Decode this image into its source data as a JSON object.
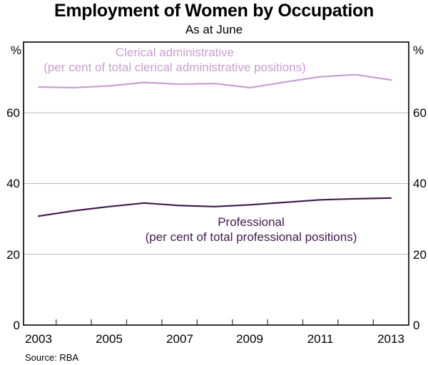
{
  "title": "Employment of Women by Occupation",
  "subtitle": "As at June",
  "source": "Source: RBA",
  "axis": {
    "unit_left": "%",
    "unit_right": "%",
    "yticks_left": [
      "60",
      "40",
      "20",
      "0"
    ],
    "yticks_right": [
      "60",
      "40",
      "20",
      "0"
    ],
    "xticks": [
      "2003",
      "2005",
      "2007",
      "2009",
      "2011",
      "2013"
    ]
  },
  "colors": {
    "grid": "#b8b8b8",
    "axis_border": "#000000",
    "tick": "#444444",
    "text": "#000000"
  },
  "chart_data": {
    "type": "line",
    "title": "Employment of Women by Occupation",
    "subtitle": "As at June",
    "x": [
      2003,
      2004,
      2005,
      2006,
      2007,
      2008,
      2009,
      2010,
      2011,
      2012,
      2013
    ],
    "series": [
      {
        "name": "Clerical administrative",
        "annotation": "(per cent of total clerical administrative positions)",
        "color": "#c89fd2",
        "values": [
          67.3,
          67.1,
          67.6,
          68.6,
          68.1,
          68.3,
          67.1,
          68.7,
          70.2,
          70.8,
          69.3
        ]
      },
      {
        "name": "Professional",
        "annotation": "(per cent of total professional positions)",
        "color": "#41194b",
        "values": [
          30.8,
          32.3,
          33.5,
          34.5,
          33.8,
          33.5,
          34.0,
          34.7,
          35.4,
          35.7,
          35.9
        ]
      }
    ],
    "ylabel": "%",
    "ylim": [
      0,
      80
    ],
    "yticks": [
      0,
      20,
      40,
      60
    ],
    "grid_yticks": [
      20,
      40,
      60
    ],
    "xtick_label_years": [
      2003,
      2005,
      2007,
      2009,
      2011,
      2013
    ],
    "year_boundary_ticks": [
      2003.5,
      2004.5,
      2005.5,
      2006.5,
      2007.5,
      2008.5,
      2009.5,
      2010.5,
      2011.5,
      2012.5
    ],
    "grid": "horizontal",
    "legend_position": "inline-labels",
    "xlabel": ""
  }
}
